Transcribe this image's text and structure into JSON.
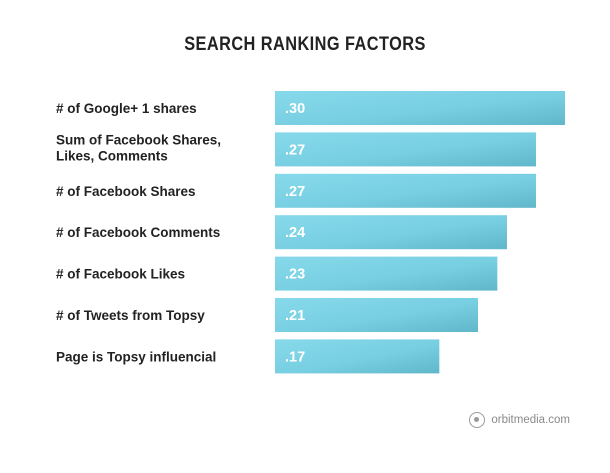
{
  "chart_data": {
    "type": "bar",
    "orientation": "horizontal",
    "title": "SEARCH RANKING FACTORS",
    "categories": [
      [
        "# of Google+ 1 shares"
      ],
      [
        "Sum of Facebook Shares,",
        "Likes, Comments"
      ],
      [
        "# of Facebook Shares"
      ],
      [
        "# of Facebook Comments"
      ],
      [
        "# of Facebook Likes"
      ],
      [
        "# of Tweets from Topsy"
      ],
      [
        "Page is Topsy influencial"
      ]
    ],
    "values": [
      0.3,
      0.27,
      0.27,
      0.24,
      0.23,
      0.21,
      0.17
    ],
    "value_labels": [
      ".30",
      ".27",
      ".27",
      ".24",
      ".23",
      ".21",
      ".17"
    ],
    "bar_color": "#7dd3e6",
    "bar_color_dark": "#63bccf",
    "grid": false,
    "legend": "none"
  },
  "brand": {
    "text": "orbitmedia.com",
    "icon": "orbit-media-logo-icon"
  }
}
